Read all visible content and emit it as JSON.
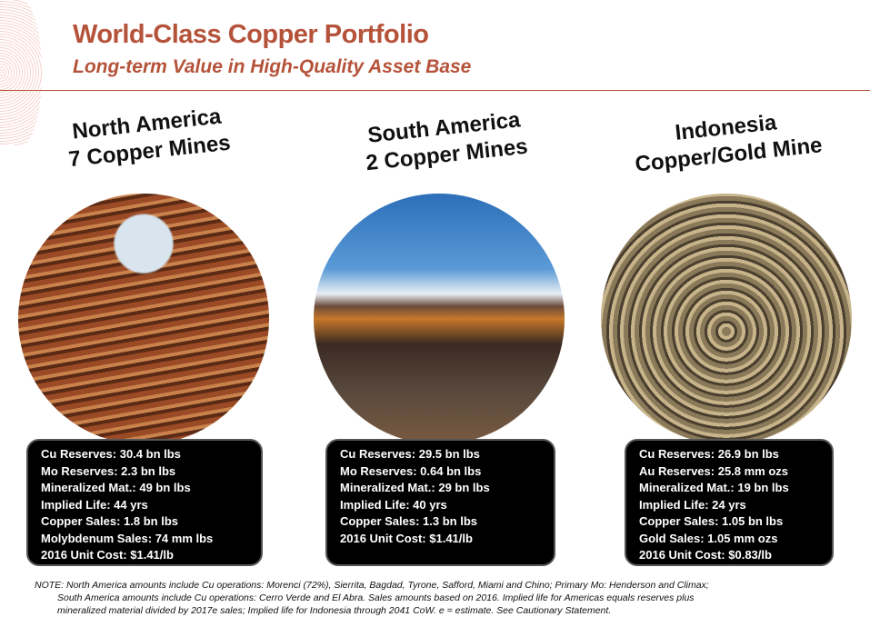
{
  "header": {
    "title": "World-Class Copper Portfolio",
    "subtitle": "Long-term Value in High-Quality Asset Base"
  },
  "regions": [
    {
      "heading": [
        "North America",
        "7 Copper Mines"
      ],
      "stats": [
        "Cu Reserves: 30.4 bn lbs",
        "Mo Reserves: 2.3 bn lbs",
        "Mineralized Mat.: 49 bn lbs",
        "Implied Life: 44 yrs",
        "Copper Sales:  1.8 bn lbs",
        "Molybdenum Sales: 74 mm lbs",
        "2016 Unit Cost: $1.41/lb"
      ]
    },
    {
      "heading": [
        "South America",
        "2 Copper Mines"
      ],
      "stats": [
        "Cu Reserves: 29.5 bn lbs",
        "Mo Reserves: 0.64 bn lbs",
        "Mineralized Mat.: 29 bn lbs",
        "Implied Life: 40 yrs",
        "Copper Sales:  1.3 bn lbs",
        "2016 Unit Cost: $1.41/lb"
      ]
    },
    {
      "heading": [
        "Indonesia",
        "Copper/Gold Mine"
      ],
      "stats": [
        "Cu Reserves: 26.9 bn lbs",
        "Au Reserves: 25.8 mm ozs",
        "Mineralized Mat.: 19 bn lbs",
        "Implied Life: 24 yrs",
        "Copper Sales:  1.05 bn lbs",
        "Gold Sales: 1.05 mm ozs",
        "2016 Unit Cost: $0.83/lb"
      ]
    }
  ],
  "note": [
    "NOTE: North America amounts include Cu operations: Morenci (72%), Sierrita, Bagdad, Tyrone, Safford, Miami and Chino; Primary Mo: Henderson and Climax;",
    "South America amounts include Cu operations: Cerro Verde and El Abra. Sales amounts based on 2016. Implied life for Americas equals reserves plus",
    "mineralized material divided by 2017e sales; Implied life for Indonesia through 2041 CoW. e = estimate. See Cautionary Statement."
  ],
  "colors": {
    "accent": "#b5533a"
  }
}
